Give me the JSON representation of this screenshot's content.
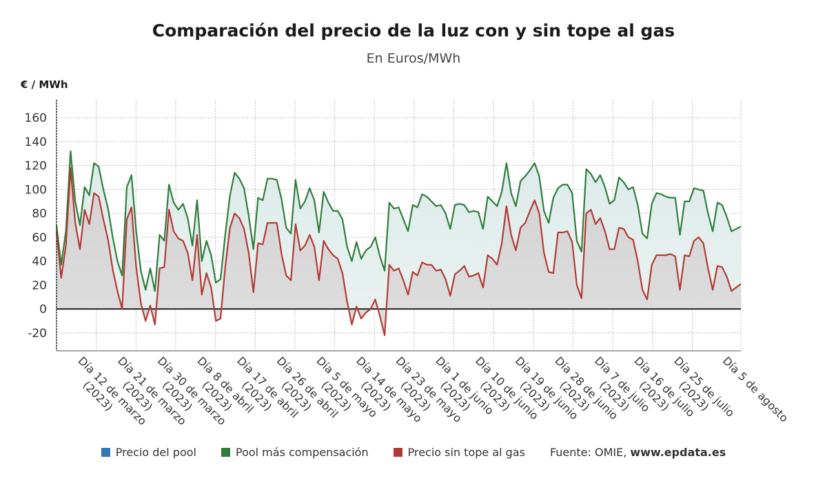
{
  "title": "Comparación del precio de la luz con y sin tope al gas",
  "subtitle": "En Euros/MWh",
  "unit_label": "€ / MWh",
  "colors": {
    "pool": "#2f78b5",
    "compensation": "#2e7d3b",
    "no_cap": "#b23a34"
  },
  "legend": [
    {
      "label": "Precio del pool",
      "color": "#2f78b5"
    },
    {
      "label": "Pool más compensación",
      "color": "#2e7d3b"
    },
    {
      "label": "Precio sin tope al gas",
      "color": "#b23a34"
    }
  ],
  "source": {
    "prefix": "Fuente: OMIE, ",
    "site": "www.epdata.es"
  },
  "chart_data": {
    "type": "area",
    "title": "Comparación del precio de la luz con y sin tope al gas",
    "subtitle": "En Euros/MWh",
    "ylabel": "€ / MWh",
    "ylim": [
      -35,
      175
    ],
    "yticks": [
      -20,
      0,
      20,
      40,
      60,
      80,
      100,
      120,
      140,
      160
    ],
    "grid": true,
    "legend_position": "bottom",
    "x_start": "2023-03-03",
    "x_end": "2023-08-05",
    "x_ticks": [
      {
        "date": "2023-03-12",
        "lines": [
          "Día 12 de marzo",
          "(2023)"
        ]
      },
      {
        "date": "2023-03-21",
        "lines": [
          "Día 21 de marzo",
          "(2023)"
        ]
      },
      {
        "date": "2023-03-30",
        "lines": [
          "Día 30 de marzo",
          "(2023)"
        ]
      },
      {
        "date": "2023-04-08",
        "lines": [
          "Día 8 de abril",
          "(2023)"
        ]
      },
      {
        "date": "2023-04-17",
        "lines": [
          "Día 17 de abril",
          "(2023)"
        ]
      },
      {
        "date": "2023-04-26",
        "lines": [
          "Día 26 de abril",
          "(2023)"
        ]
      },
      {
        "date": "2023-05-05",
        "lines": [
          "Día 5 de mayo",
          "(2023)"
        ]
      },
      {
        "date": "2023-05-14",
        "lines": [
          "Día 14 de mayo",
          "(2023)"
        ]
      },
      {
        "date": "2023-05-23",
        "lines": [
          "Día 23 de mayo",
          "(2023)"
        ]
      },
      {
        "date": "2023-06-01",
        "lines": [
          "Día 1 de junio",
          "(2023)"
        ]
      },
      {
        "date": "2023-06-10",
        "lines": [
          "Día 10 de junio",
          "(2023)"
        ]
      },
      {
        "date": "2023-06-19",
        "lines": [
          "Día 19 de junio",
          "(2023)"
        ]
      },
      {
        "date": "2023-06-28",
        "lines": [
          "Día 28 de junio",
          "(2023)"
        ]
      },
      {
        "date": "2023-07-07",
        "lines": [
          "Día 7 de julio",
          "(2023)"
        ]
      },
      {
        "date": "2023-07-16",
        "lines": [
          "Día 16 de julio",
          "(2023)"
        ]
      },
      {
        "date": "2023-07-25",
        "lines": [
          "Día 25 de julio",
          "(2023)"
        ]
      },
      {
        "date": "2023-08-05",
        "lines": [
          "Día 5 de agosto"
        ]
      }
    ],
    "series": [
      {
        "name": "Pool más compensación",
        "color": "#2e7d3b",
        "values": [
          70,
          37,
          65,
          132,
          90,
          70,
          102,
          95,
          122,
          119,
          100,
          84,
          60,
          40,
          28,
          102,
          112,
          65,
          32,
          16,
          34,
          15,
          62,
          57,
          104,
          89,
          83,
          88,
          76,
          53,
          91,
          40,
          57,
          45,
          22,
          25,
          62,
          95,
          114,
          109,
          101,
          78,
          50,
          93,
          91,
          109,
          109,
          108,
          92,
          68,
          63,
          108,
          84,
          90,
          101,
          91,
          64,
          98,
          89,
          82,
          82,
          75,
          52,
          40,
          56,
          42,
          49,
          52,
          60,
          44,
          32,
          89,
          84,
          85,
          75,
          65,
          87,
          85,
          96,
          94,
          90,
          86,
          87,
          80,
          67,
          87,
          88,
          87,
          81,
          82,
          81,
          67,
          94,
          90,
          86,
          98,
          122,
          97,
          86,
          107,
          111,
          116,
          122,
          111,
          82,
          72,
          93,
          101,
          104,
          104,
          97,
          57,
          48,
          117,
          113,
          106,
          112,
          102,
          88,
          91,
          110,
          106,
          100,
          102,
          87,
          63,
          59,
          88,
          97,
          96,
          94,
          93,
          93,
          62,
          90,
          90,
          101,
          100,
          99,
          80,
          65,
          89,
          87,
          77,
          65,
          67,
          69
        ]
      },
      {
        "name": "Precio sin tope al gas",
        "color": "#b23a34",
        "values": [
          65,
          26,
          53,
          118,
          72,
          50,
          83,
          71,
          97,
          94,
          75,
          58,
          33,
          15,
          0,
          75,
          85,
          35,
          5,
          -10,
          3,
          -13,
          34,
          35,
          83,
          65,
          59,
          57,
          47,
          24,
          62,
          12,
          30,
          18,
          -10,
          -8,
          35,
          68,
          80,
          76,
          67,
          47,
          14,
          55,
          54,
          72,
          72,
          72,
          46,
          28,
          24,
          71,
          49,
          53,
          62,
          52,
          24,
          57,
          50,
          45,
          42,
          30,
          6,
          -13,
          2,
          -8,
          -3,
          0,
          8,
          -6,
          -22,
          37,
          32,
          34,
          24,
          12,
          31,
          28,
          39,
          37,
          37,
          32,
          33,
          25,
          11,
          29,
          32,
          36,
          27,
          28,
          30,
          18,
          45,
          42,
          37,
          55,
          86,
          62,
          49,
          68,
          72,
          82,
          91,
          80,
          47,
          31,
          30,
          64,
          64,
          65,
          56,
          20,
          9,
          80,
          83,
          71,
          76,
          65,
          50,
          50,
          68,
          67,
          60,
          58,
          40,
          16,
          8,
          37,
          45,
          45,
          45,
          46,
          44,
          16,
          45,
          44,
          57,
          60,
          55,
          34,
          16,
          36,
          35,
          27,
          15,
          18,
          21
        ]
      }
    ]
  }
}
